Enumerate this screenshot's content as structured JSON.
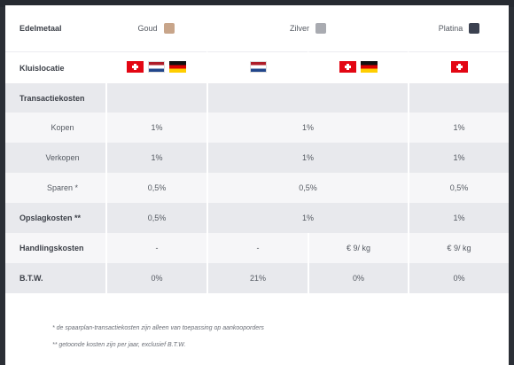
{
  "table": {
    "header": {
      "label": "Edelmetaal",
      "metals": [
        {
          "name": "Goud",
          "color": "#c8a58a"
        },
        {
          "name": "Zilver",
          "color": "#a9abb1"
        },
        {
          "name": "Platina",
          "color": "#3b4150"
        }
      ]
    },
    "vault": {
      "label": "Kluislocatie",
      "groups": [
        {
          "flags": [
            "ch-flag",
            "nl-flag",
            "de-flag"
          ]
        },
        {
          "flags": [
            "nl-flag"
          ]
        },
        {
          "flags": [
            "ch-flag",
            "de-flag"
          ]
        },
        {
          "flags": [
            "ch-flag"
          ]
        }
      ]
    },
    "transaction_costs": {
      "label": "Transactiekosten"
    },
    "buy": {
      "label": "Kopen",
      "goud": "1%",
      "zilver": "1%",
      "platina": "1%"
    },
    "sell": {
      "label": "Verkopen",
      "goud": "1%",
      "zilver": "1%",
      "platina": "1%"
    },
    "save": {
      "label": "Sparen *",
      "goud": "0,5%",
      "zilver": "0,5%",
      "platina": "0,5%"
    },
    "storage": {
      "label": "Opslagkosten **",
      "goud": "0,5%",
      "zilver": "1%",
      "platina": "1%"
    },
    "handling": {
      "label": "Handlingskosten",
      "goud": "-",
      "zilver_nl": "-",
      "zilver_ch_de": "€ 9/ kg",
      "platina": "€ 9/ kg"
    },
    "vat": {
      "label": "B.T.W.",
      "goud": "0%",
      "zilver_nl": "21%",
      "zilver_ch_de": "0%",
      "platina": "0%"
    }
  },
  "footnotes": {
    "note1": "* de spaarplan-transactiekosten zijn alleen van toepassing op aankooporders",
    "note2": "** getoonde kosten zijn per jaar, exclusief B.T.W."
  }
}
